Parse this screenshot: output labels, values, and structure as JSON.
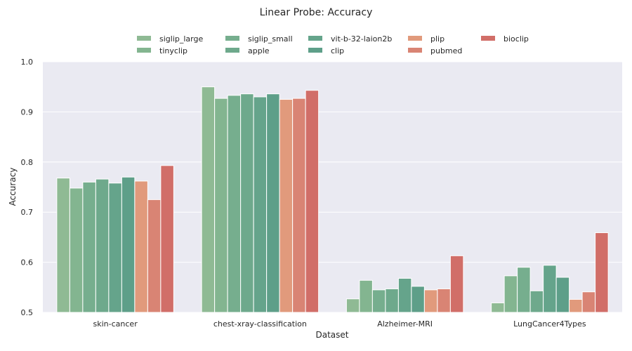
{
  "chart_data": {
    "type": "bar",
    "title": "Linear Probe: Accuracy",
    "xlabel": "Dataset",
    "ylabel": "Accuracy",
    "ylim": [
      0.5,
      1.0
    ],
    "yticks": [
      "0.5",
      "0.6",
      "0.7",
      "0.8",
      "0.9",
      "1.0"
    ],
    "grid": true,
    "legend_placement": "top-center",
    "categories": [
      "skin-cancer",
      "chest-xray-classification",
      "Alzheimer-MRI",
      "LungCancer4Types"
    ],
    "series": [
      {
        "name": "siglip_large",
        "color": "#8fba94",
        "values": [
          0.768,
          0.95,
          0.527,
          0.519
        ]
      },
      {
        "name": "tinyclip",
        "color": "#83b590",
        "values": [
          0.748,
          0.927,
          0.564,
          0.573
        ]
      },
      {
        "name": "siglip_small",
        "color": "#76ae8e",
        "values": [
          0.76,
          0.933,
          0.545,
          0.59
        ]
      },
      {
        "name": "apple",
        "color": "#6ea98c",
        "values": [
          0.766,
          0.936,
          0.547,
          0.543
        ]
      },
      {
        "name": "vit-b-32-laion2b",
        "color": "#65a48b",
        "values": [
          0.758,
          0.93,
          0.568,
          0.594
        ]
      },
      {
        "name": "clip",
        "color": "#5e9f89",
        "values": [
          0.77,
          0.936,
          0.552,
          0.57
        ]
      },
      {
        "name": "plip",
        "color": "#e19a7c",
        "values": [
          0.762,
          0.925,
          0.545,
          0.526
        ]
      },
      {
        "name": "pubmed",
        "color": "#d98474",
        "values": [
          0.725,
          0.927,
          0.547,
          0.541
        ]
      },
      {
        "name": "bioclip",
        "color": "#d16e68",
        "values": [
          0.793,
          0.943,
          0.613,
          0.659
        ]
      }
    ]
  }
}
